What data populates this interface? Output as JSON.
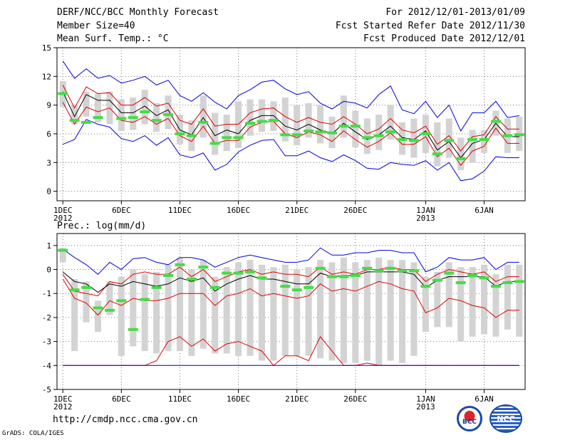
{
  "header": {
    "left": [
      "DERF/NCC/BCC Monthly Forecast",
      "Member Size=40",
      "Mean Surf. Temp.: °C"
    ],
    "right": [
      "For 2012/12/01-2013/01/09",
      "Fcst Started Refer Date 2012/11/30",
      "Fcst Produced Date 2012/12/01"
    ]
  },
  "footer": {
    "url": "http://cmdp.ncc.cma.gov.cn",
    "credit": "GrADS: COLA/IGES"
  },
  "logos": {
    "bcc": "BCC",
    "ncc": "NCC"
  },
  "colors": {
    "mean": "#000000",
    "band_inner": "#e00000",
    "band_outer": "#0000e0",
    "box": "#d3d3d3",
    "obs": "#44dd44"
  },
  "chart_data": [
    {
      "type": "line",
      "title": "Mean Surf. Temp.: °C",
      "ylim": [
        -1,
        15
      ],
      "yticks": [
        0,
        3,
        6,
        9,
        12,
        15
      ],
      "xlim": [
        0.5,
        40.5
      ],
      "xticks": [
        {
          "day": 1,
          "label": "1DEC",
          "label2": "2012"
        },
        {
          "day": 6,
          "label": "6DEC"
        },
        {
          "day": 11,
          "label": "11DEC"
        },
        {
          "day": 16,
          "label": "16DEC"
        },
        {
          "day": 21,
          "label": "21DEC"
        },
        {
          "day": 26,
          "label": "26DEC"
        },
        {
          "day": 32,
          "label": "1JAN",
          "label2": "2013"
        },
        {
          "day": 37,
          "label": "6JAN"
        }
      ],
      "grid": "dotted",
      "x": [
        1,
        2,
        3,
        4,
        5,
        6,
        7,
        8,
        9,
        10,
        11,
        12,
        13,
        14,
        15,
        16,
        17,
        18,
        19,
        20,
        21,
        22,
        23,
        24,
        25,
        26,
        27,
        28,
        29,
        30,
        31,
        32,
        33,
        34,
        35,
        36,
        37,
        38,
        39,
        40
      ],
      "series": [
        {
          "name": "ensemble_max",
          "color": "blue",
          "values": [
            13.6,
            11.8,
            12.8,
            11.8,
            12.1,
            11.3,
            11.6,
            12.0,
            11.1,
            11.6,
            10.0,
            9.4,
            10.3,
            9.3,
            8.6,
            10.0,
            10.6,
            11.4,
            11.6,
            10.7,
            10.1,
            10.4,
            9.2,
            8.6,
            9.4,
            9.2,
            8.7,
            10.1,
            11.0,
            8.5,
            8.1,
            9.4,
            7.7,
            9.0,
            6.3,
            8.2,
            8.2,
            9.4,
            7.7,
            7.9
          ]
        },
        {
          "name": "upper_band",
          "color": "red",
          "values": [
            11.1,
            8.7,
            10.9,
            10.2,
            10.3,
            9.0,
            9.0,
            9.8,
            8.9,
            9.2,
            7.4,
            7.0,
            8.6,
            6.8,
            7.0,
            7.0,
            8.2,
            8.6,
            8.7,
            7.8,
            7.2,
            7.7,
            7.2,
            7.0,
            7.8,
            7.0,
            6.0,
            6.5,
            7.6,
            6.4,
            6.1,
            6.8,
            4.9,
            5.8,
            4.2,
            5.7,
            5.9,
            7.8,
            6.5,
            6.5
          ]
        },
        {
          "name": "ensemble_mean",
          "color": "black",
          "values": [
            10.4,
            7.8,
            10.1,
            9.5,
            9.5,
            8.2,
            8.2,
            8.9,
            7.9,
            8.5,
            6.4,
            5.9,
            7.7,
            5.8,
            6.4,
            6.0,
            7.4,
            7.9,
            7.9,
            6.8,
            6.4,
            7.0,
            6.4,
            6.0,
            7.1,
            6.2,
            5.4,
            5.9,
            6.8,
            5.6,
            5.4,
            6.3,
            4.3,
            5.2,
            3.5,
            5.0,
            5.4,
            7.1,
            5.7,
            5.7
          ]
        },
        {
          "name": "lower_band",
          "color": "red",
          "values": [
            9.3,
            7.0,
            8.8,
            8.3,
            8.7,
            7.4,
            7.2,
            7.8,
            7.0,
            7.6,
            5.8,
            5.2,
            6.8,
            5.0,
            5.3,
            5.3,
            6.7,
            7.2,
            7.3,
            6.0,
            5.6,
            6.2,
            5.9,
            5.2,
            6.3,
            5.4,
            4.6,
            5.2,
            6.1,
            4.9,
            4.9,
            5.7,
            3.6,
            4.5,
            2.7,
            4.2,
            4.7,
            6.6,
            5.0,
            5.0
          ]
        },
        {
          "name": "ensemble_min",
          "color": "blue",
          "values": [
            4.9,
            5.4,
            7.5,
            7.0,
            6.7,
            5.5,
            5.2,
            5.8,
            4.8,
            5.6,
            3.8,
            3.5,
            4.0,
            2.2,
            2.8,
            4.1,
            4.8,
            5.3,
            5.4,
            3.7,
            3.7,
            4.2,
            3.5,
            3.1,
            3.8,
            3.2,
            2.4,
            2.3,
            3.0,
            2.8,
            2.7,
            3.2,
            2.2,
            3.0,
            1.1,
            1.3,
            2.1,
            3.6,
            3.5,
            3.5
          ]
        }
      ],
      "boxes": {
        "low": [
          8.8,
          7.0,
          7.8,
          7.2,
          7.0,
          6.3,
          6.4,
          7.0,
          6.2,
          6.5,
          4.9,
          4.2,
          5.6,
          3.8,
          4.2,
          4.5,
          5.8,
          6.2,
          6.3,
          5.2,
          4.8,
          5.6,
          5.0,
          4.5,
          5.6,
          4.6,
          3.9,
          4.3,
          5.4,
          3.8,
          3.5,
          4.0,
          2.6,
          3.5,
          2.2,
          3.0,
          4.0,
          5.8,
          4.0,
          4.2
        ],
        "high": [
          11.5,
          9.0,
          10.4,
          10.2,
          10.4,
          9.6,
          9.8,
          10.6,
          9.2,
          10.0,
          8.0,
          7.4,
          10.0,
          8.2,
          8.0,
          9.4,
          9.6,
          9.6,
          9.4,
          9.8,
          9.0,
          9.2,
          9.0,
          7.8,
          10.0,
          8.4,
          7.6,
          8.0,
          9.0,
          7.2,
          7.6,
          8.0,
          7.2,
          7.6,
          5.6,
          6.4,
          6.4,
          8.4,
          7.6,
          7.8
        ]
      },
      "observed": [
        10.2,
        7.4,
        7.2,
        7.7,
        null,
        7.6,
        7.7,
        8.3,
        7.4,
        8.0,
        6.0,
        5.8,
        7.2,
        5.0,
        5.6,
        5.6,
        7.1,
        7.3,
        7.4,
        5.9,
        5.9,
        6.3,
        6.2,
        6.1,
        6.8,
        6.8,
        5.6,
        5.8,
        6.2,
        5.4,
        5.3,
        6.0,
        3.9,
        5.3,
        3.4,
        5.4,
        5.4,
        7.3,
        5.8,
        5.9
      ]
    },
    {
      "type": "line",
      "title": "Prec.: log(mm/d)",
      "ylim": [
        -5,
        1.5
      ],
      "yticks": [
        -5,
        -4,
        -3,
        -2,
        -1,
        0,
        1
      ],
      "xlim": [
        0.5,
        40.5
      ],
      "xticks": [
        {
          "day": 1,
          "label": "1DEC",
          "label2": "2012"
        },
        {
          "day": 6,
          "label": "6DEC"
        },
        {
          "day": 11,
          "label": "11DEC"
        },
        {
          "day": 16,
          "label": "16DEC"
        },
        {
          "day": 21,
          "label": "21DEC"
        },
        {
          "day": 26,
          "label": "26DEC"
        },
        {
          "day": 32,
          "label": "1JAN",
          "label2": "2013"
        },
        {
          "day": 37,
          "label": "6JAN"
        }
      ],
      "grid": "dotted",
      "x": [
        1,
        2,
        3,
        4,
        5,
        6,
        7,
        8,
        9,
        10,
        11,
        12,
        13,
        14,
        15,
        16,
        17,
        18,
        19,
        20,
        21,
        22,
        23,
        24,
        25,
        26,
        27,
        28,
        29,
        30,
        31,
        32,
        33,
        34,
        35,
        36,
        37,
        38,
        39,
        40
      ],
      "series": [
        {
          "name": "ensemble_max",
          "color": "blue",
          "values": [
            0.85,
            0.5,
            0.2,
            -0.2,
            0.3,
            0.0,
            0.45,
            0.5,
            0.3,
            0.2,
            0.5,
            0.5,
            0.4,
            0.1,
            0.3,
            0.5,
            0.6,
            0.5,
            0.4,
            0.3,
            0.3,
            0.4,
            0.9,
            0.6,
            0.6,
            0.7,
            0.7,
            0.8,
            0.8,
            0.7,
            0.7,
            -0.1,
            0.1,
            0.5,
            0.4,
            0.4,
            0.5,
            0.0,
            0.3,
            0.3
          ]
        },
        {
          "name": "upper_band",
          "color": "red",
          "values": [
            -0.2,
            -0.9,
            -1.0,
            -1.1,
            -0.5,
            -0.6,
            -0.2,
            -0.1,
            -0.2,
            -0.2,
            0.1,
            -0.3,
            0.0,
            -0.5,
            -0.3,
            -0.1,
            0.0,
            -0.2,
            -0.1,
            -0.2,
            -0.2,
            -0.3,
            0.1,
            -0.2,
            -0.1,
            -0.2,
            0.0,
            0.0,
            0.1,
            0.0,
            0.0,
            -0.5,
            -0.2,
            0.0,
            -0.1,
            -0.2,
            -0.1,
            -0.5,
            -0.3,
            -0.3
          ]
        },
        {
          "name": "ensemble_mean",
          "color": "black",
          "values": [
            -0.1,
            -0.5,
            -0.6,
            -0.95,
            -0.6,
            -0.7,
            -0.5,
            -0.6,
            -0.7,
            -0.6,
            -0.35,
            -0.5,
            -0.35,
            -0.9,
            -0.6,
            -0.4,
            -0.25,
            -0.4,
            -0.4,
            -0.5,
            -0.6,
            -0.6,
            -0.15,
            -0.3,
            -0.25,
            -0.25,
            -0.1,
            -0.1,
            -0.1,
            -0.1,
            -0.2,
            -0.75,
            -0.45,
            -0.3,
            -0.3,
            -0.3,
            -0.3,
            -0.7,
            -0.5,
            -0.5
          ]
        },
        {
          "name": "lower_band",
          "color": "red",
          "values": [
            -0.4,
            -1.2,
            -1.4,
            -1.9,
            -1.3,
            -1.5,
            -1.2,
            -1.3,
            -1.3,
            -1.2,
            -1.0,
            -1.0,
            -1.0,
            -1.5,
            -1.1,
            -1.0,
            -0.8,
            -1.1,
            -1.0,
            -1.1,
            -1.2,
            -1.1,
            -0.6,
            -0.9,
            -0.8,
            -0.9,
            -0.7,
            -0.5,
            -0.6,
            -0.8,
            -0.9,
            -1.8,
            -1.6,
            -1.2,
            -1.3,
            -1.5,
            -1.6,
            -2.0,
            -1.7,
            -1.7
          ]
        },
        {
          "name": "lower_outer",
          "color": "red",
          "values": [
            -4.0,
            -4.0,
            -4.0,
            -4.0,
            -4.0,
            -4.0,
            -4.0,
            -4.0,
            -3.8,
            -3.0,
            -2.8,
            -3.2,
            -2.9,
            -3.4,
            -3.1,
            -3.0,
            -3.2,
            -3.4,
            -4.0,
            -3.6,
            -3.6,
            -3.8,
            -2.8,
            -3.4,
            -4.0,
            -4.0,
            -3.9,
            -4.0,
            -4.0,
            -4.0,
            -4.0,
            -4.0,
            -4.0,
            -4.0,
            -4.0,
            -4.0,
            -4.0,
            -4.0,
            -4.0,
            -4.0
          ]
        },
        {
          "name": "ensemble_min",
          "color": "blue",
          "values": [
            -4.0,
            -4.0,
            -4.0,
            -4.0,
            -4.0,
            -4.0,
            -4.0,
            -4.0,
            -4.0,
            -4.0,
            -4.0,
            -4.0,
            -4.0,
            -4.0,
            -4.0,
            -4.0,
            -4.0,
            -4.0,
            -4.0,
            -4.0,
            -4.0,
            -4.0,
            -4.0,
            -4.0,
            -4.0,
            -4.0,
            -4.0,
            -4.0,
            -4.0,
            -4.0,
            -4.0,
            -4.0,
            -4.0,
            -4.0,
            -4.0,
            -4.0,
            -4.0,
            -4.0,
            -4.0,
            -4.0
          ]
        }
      ],
      "boxes": {
        "low": [
          0.3,
          -3.4,
          -2.2,
          -2.6,
          -1.9,
          -3.6,
          -3.2,
          -3.4,
          -3.5,
          -3.4,
          -3.4,
          -3.6,
          -3.3,
          -3.5,
          -3.5,
          -3.6,
          -3.6,
          -3.8,
          -3.8,
          -3.6,
          -3.6,
          -3.6,
          -3.7,
          -3.8,
          -3.9,
          -3.9,
          -3.8,
          -4.0,
          -3.8,
          -3.9,
          -3.6,
          -2.6,
          -2.4,
          -2.4,
          -3.0,
          -2.8,
          -2.7,
          -2.8,
          -2.5,
          -2.8
        ],
        "high": [
          0.9,
          -0.4,
          -0.5,
          -1.3,
          -0.5,
          -0.3,
          0.0,
          -0.2,
          -0.1,
          0.2,
          0.5,
          0.0,
          0.4,
          -0.3,
          0.1,
          0.3,
          0.4,
          0.2,
          0.1,
          0.2,
          0.0,
          0.1,
          0.4,
          0.3,
          0.5,
          0.3,
          0.4,
          0.5,
          0.4,
          0.4,
          0.3,
          -0.3,
          -0.1,
          0.3,
          0.1,
          0.1,
          0.2,
          -0.2,
          0.2,
          0.2
        ]
      },
      "observed": [
        0.8,
        -0.85,
        -0.75,
        -1.6,
        -1.7,
        -1.3,
        -2.5,
        -1.25,
        -0.75,
        -0.25,
        0.2,
        -0.4,
        0.1,
        -0.75,
        -0.15,
        -0.15,
        -0.1,
        -0.35,
        null,
        -0.7,
        -0.85,
        -0.75,
        0.05,
        -0.3,
        -0.3,
        -0.25,
        0.05,
        -0.05,
        0.05,
        -0.05,
        -0.05,
        -0.7,
        -0.45,
        -0.15,
        -0.55,
        -0.25,
        -0.35,
        -0.7,
        -0.55,
        -0.5
      ]
    }
  ]
}
